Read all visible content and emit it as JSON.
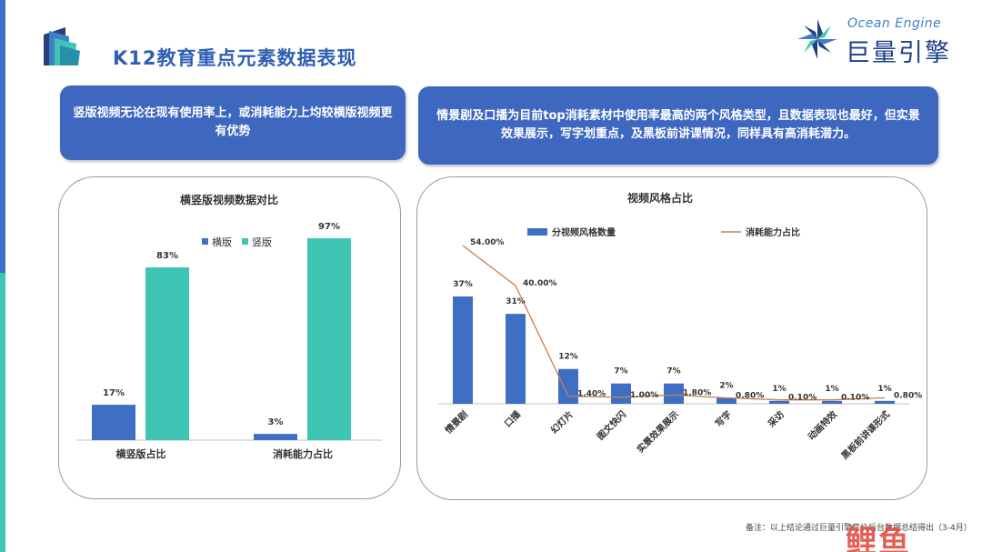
{
  "page": {
    "title": "K12教育重点元素数据表现",
    "brand_en": "Ocean Engine",
    "brand_cn": "巨量引擎",
    "footnote": "备注：以上结论通过巨量引擎竞价后台数据总结得出（3-4月）",
    "watermark": "鲤鱼"
  },
  "callouts": [
    "竖版视频无论在现有使用率上，或消耗能力上均较横版视频更有优势",
    "情景剧及口播为目前top消耗素材中使用率最高的两个风格类型，且数据表现也最好，但实景效果展示，写字划重点，及黑板前讲课情况，同样具有高消耗潜力。"
  ],
  "colors": {
    "accent_blue": "#3e68c0",
    "bar_blue": "#3f6fc4",
    "bar_teal": "#3fc5b4",
    "line_orange": "#c8804d",
    "title_blue": "#2f5fb3"
  },
  "chart_data": [
    {
      "type": "bar",
      "title": "横竖版视频数据对比",
      "categories": [
        "横竖版占比",
        "消耗能力占比"
      ],
      "series": [
        {
          "name": "横版",
          "values": [
            17,
            3
          ],
          "labels": [
            "17%",
            "3%"
          ]
        },
        {
          "name": "竖版",
          "values": [
            83,
            97
          ],
          "labels": [
            "83%",
            "97%"
          ]
        }
      ],
      "ylim": [
        0,
        100
      ],
      "legend": "top-right",
      "grid": false
    },
    {
      "type": "bar",
      "title": "视频风格占比",
      "categories": [
        "情景剧",
        "口播",
        "幻灯片",
        "图文快闪",
        "实景效果展示",
        "写字",
        "采访",
        "动画特效",
        "黑板前讲课形式"
      ],
      "series": [
        {
          "name": "分视频风格数量",
          "type": "bar",
          "values": [
            37,
            31,
            12,
            7,
            7,
            2,
            1,
            1,
            1
          ],
          "labels": [
            "37%",
            "31%",
            "12%",
            "7%",
            "7%",
            "2%",
            "1%",
            "1%",
            "1%"
          ]
        },
        {
          "name": "消耗能力占比",
          "type": "line",
          "values": [
            54.0,
            40.0,
            1.4,
            1.0,
            1.8,
            0.8,
            0.1,
            0.1,
            0.8
          ],
          "labels": [
            "54.00%",
            "40.00%",
            "1.40%",
            "1.00%",
            "1.80%",
            "0.80%",
            "0.10%",
            "0.10%",
            "0.80%"
          ]
        }
      ],
      "ylim": [
        0,
        60
      ],
      "legend": "top",
      "grid": false
    }
  ]
}
